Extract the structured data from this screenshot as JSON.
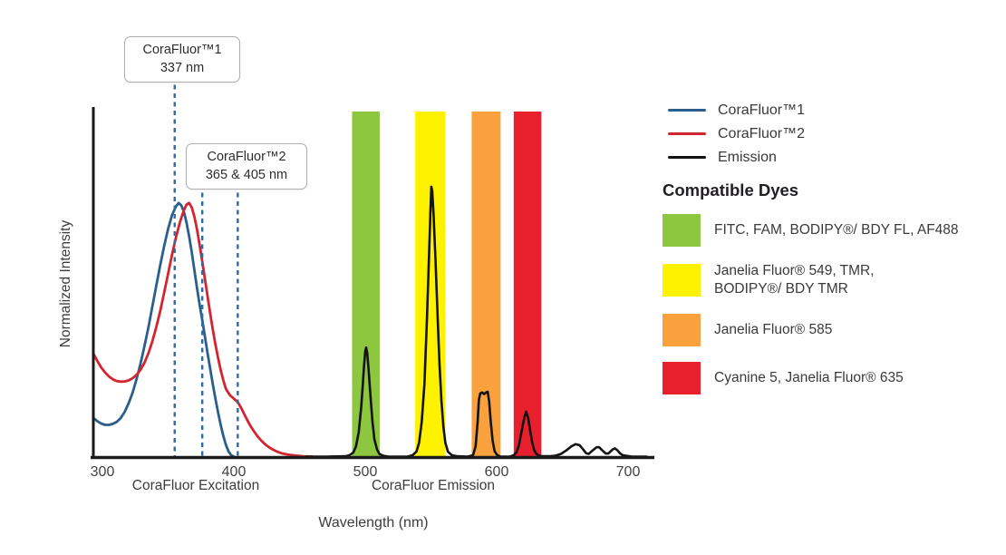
{
  "chart_data": {
    "type": "line",
    "title": "",
    "xlabel": "Wavelength (nm)",
    "ylabel": "Normalized Intensity",
    "x_ticks": [
      300,
      400,
      500,
      600,
      700
    ],
    "xlim": [
      292,
      718
    ],
    "ylim": [
      0,
      1
    ],
    "grid": false,
    "section_labels": [
      "CoraFluor Excitation",
      "CoraFluor Emission"
    ],
    "series": [
      {
        "name": "CoraFluor™1",
        "color": "#2a5f8d",
        "points": [
          [
            293,
            0.113
          ],
          [
            296,
            0.103
          ],
          [
            299,
            0.096
          ],
          [
            302,
            0.092
          ],
          [
            305,
            0.092
          ],
          [
            308,
            0.095
          ],
          [
            311,
            0.101
          ],
          [
            314,
            0.112
          ],
          [
            317,
            0.13
          ],
          [
            320,
            0.155
          ],
          [
            323,
            0.185
          ],
          [
            326,
            0.225
          ],
          [
            329,
            0.27
          ],
          [
            332,
            0.32
          ],
          [
            335,
            0.375
          ],
          [
            338,
            0.435
          ],
          [
            341,
            0.495
          ],
          [
            344,
            0.555
          ],
          [
            347,
            0.61
          ],
          [
            350,
            0.66
          ],
          [
            353,
            0.7
          ],
          [
            356,
            0.725
          ],
          [
            358,
            0.735
          ],
          [
            360,
            0.728
          ],
          [
            362,
            0.71
          ],
          [
            364,
            0.678
          ],
          [
            366,
            0.638
          ],
          [
            368,
            0.592
          ],
          [
            370,
            0.54
          ],
          [
            372,
            0.488
          ],
          [
            374,
            0.44
          ],
          [
            376,
            0.395
          ],
          [
            378,
            0.348
          ],
          [
            380,
            0.3
          ],
          [
            382,
            0.255
          ],
          [
            384,
            0.21
          ],
          [
            386,
            0.168
          ],
          [
            388,
            0.128
          ],
          [
            390,
            0.092
          ],
          [
            392,
            0.06
          ],
          [
            394,
            0.034
          ],
          [
            396,
            0.015
          ],
          [
            398,
            0.004
          ],
          [
            400,
            0.0
          ]
        ]
      },
      {
        "name": "CoraFluor™2",
        "color": "#d4242f",
        "points": [
          [
            293,
            0.3
          ],
          [
            296,
            0.278
          ],
          [
            299,
            0.259
          ],
          [
            302,
            0.244
          ],
          [
            305,
            0.232
          ],
          [
            308,
            0.224
          ],
          [
            311,
            0.219
          ],
          [
            314,
            0.217
          ],
          [
            317,
            0.218
          ],
          [
            320,
            0.221
          ],
          [
            323,
            0.227
          ],
          [
            326,
            0.237
          ],
          [
            329,
            0.252
          ],
          [
            332,
            0.272
          ],
          [
            335,
            0.3
          ],
          [
            338,
            0.334
          ],
          [
            341,
            0.375
          ],
          [
            344,
            0.422
          ],
          [
            347,
            0.475
          ],
          [
            350,
            0.53
          ],
          [
            353,
            0.585
          ],
          [
            356,
            0.636
          ],
          [
            359,
            0.68
          ],
          [
            362,
            0.714
          ],
          [
            364,
            0.73
          ],
          [
            366,
            0.735
          ],
          [
            368,
            0.722
          ],
          [
            370,
            0.695
          ],
          [
            372,
            0.658
          ],
          [
            374,
            0.613
          ],
          [
            376,
            0.565
          ],
          [
            378,
            0.515
          ],
          [
            380,
            0.465
          ],
          [
            382,
            0.415
          ],
          [
            384,
            0.368
          ],
          [
            386,
            0.325
          ],
          [
            388,
            0.286
          ],
          [
            390,
            0.251
          ],
          [
            392,
            0.221
          ],
          [
            394,
            0.196
          ],
          [
            397,
            0.178
          ],
          [
            400,
            0.168
          ],
          [
            403,
            0.158
          ],
          [
            406,
            0.138
          ],
          [
            409,
            0.115
          ],
          [
            412,
            0.093
          ],
          [
            415,
            0.075
          ],
          [
            418,
            0.059
          ],
          [
            421,
            0.046
          ],
          [
            424,
            0.035
          ],
          [
            428,
            0.024
          ],
          [
            432,
            0.016
          ],
          [
            436,
            0.01
          ],
          [
            441,
            0.006
          ],
          [
            447,
            0.003
          ],
          [
            453,
            0.001
          ],
          [
            460,
            0.0
          ]
        ]
      },
      {
        "name": "Emission",
        "color": "#131313",
        "points": [
          [
            455,
            0
          ],
          [
            470,
            0
          ],
          [
            485,
            0.001
          ],
          [
            488,
            0.004
          ],
          [
            491,
            0.012
          ],
          [
            493,
            0.03
          ],
          [
            495,
            0.07
          ],
          [
            497,
            0.145
          ],
          [
            498,
            0.2
          ],
          [
            499,
            0.26
          ],
          [
            500,
            0.305
          ],
          [
            500.7,
            0.316
          ],
          [
            501.5,
            0.3
          ],
          [
            502.5,
            0.255
          ],
          [
            504,
            0.175
          ],
          [
            505.5,
            0.1
          ],
          [
            507,
            0.05
          ],
          [
            509,
            0.02
          ],
          [
            511,
            0.007
          ],
          [
            514,
            0.002
          ],
          [
            518,
            0
          ],
          [
            532,
            0
          ],
          [
            536,
            0.004
          ],
          [
            539,
            0.015
          ],
          [
            541,
            0.04
          ],
          [
            543,
            0.1
          ],
          [
            545,
            0.21
          ],
          [
            547,
            0.4
          ],
          [
            548.5,
            0.575
          ],
          [
            549.5,
            0.7
          ],
          [
            550.3,
            0.782
          ],
          [
            551,
            0.77
          ],
          [
            552,
            0.7
          ],
          [
            553.5,
            0.565
          ],
          [
            555,
            0.41
          ],
          [
            556.5,
            0.27
          ],
          [
            558,
            0.16
          ],
          [
            559.5,
            0.085
          ],
          [
            561,
            0.04
          ],
          [
            563,
            0.014
          ],
          [
            566,
            0.004
          ],
          [
            570,
            0.001
          ],
          [
            578,
            0
          ],
          [
            582,
            0.004
          ],
          [
            584,
            0.03
          ],
          [
            585.5,
            0.1
          ],
          [
            586.5,
            0.165
          ],
          [
            587.5,
            0.183
          ],
          [
            589,
            0.186
          ],
          [
            590.5,
            0.181
          ],
          [
            592,
            0.186
          ],
          [
            593.2,
            0.188
          ],
          [
            594.3,
            0.16
          ],
          [
            595.5,
            0.1
          ],
          [
            597,
            0.045
          ],
          [
            598.5,
            0.015
          ],
          [
            600.5,
            0.004
          ],
          [
            603,
            0
          ],
          [
            610,
            0
          ],
          [
            613,
            0.004
          ],
          [
            615,
            0.012
          ],
          [
            617,
            0.033
          ],
          [
            619,
            0.073
          ],
          [
            621,
            0.113
          ],
          [
            622.5,
            0.13
          ],
          [
            624,
            0.112
          ],
          [
            625.5,
            0.075
          ],
          [
            627,
            0.042
          ],
          [
            628.5,
            0.02
          ],
          [
            630,
            0.009
          ],
          [
            632,
            0.003
          ],
          [
            635,
            0.001
          ],
          [
            641,
            0.001
          ],
          [
            645,
            0.003
          ],
          [
            649,
            0.008
          ],
          [
            653,
            0.018
          ],
          [
            657,
            0.03
          ],
          [
            660,
            0.036
          ],
          [
            663,
            0.033
          ],
          [
            666,
            0.02
          ],
          [
            668,
            0.01
          ],
          [
            670,
            0.008
          ],
          [
            673,
            0.018
          ],
          [
            676,
            0.027
          ],
          [
            678,
            0.027
          ],
          [
            681,
            0.016
          ],
          [
            683,
            0.009
          ],
          [
            685,
            0.009
          ],
          [
            688,
            0.02
          ],
          [
            690,
            0.024
          ],
          [
            692,
            0.018
          ],
          [
            694,
            0.009
          ],
          [
            696,
            0.004
          ],
          [
            699,
            0.002
          ],
          [
            703,
            0
          ],
          [
            714,
            0
          ]
        ]
      }
    ],
    "bands": [
      {
        "color": "#8dc63f",
        "nm": [
          490,
          511
        ]
      },
      {
        "color": "#fff200",
        "nm": [
          538,
          561
        ]
      },
      {
        "color": "#f9a13c",
        "nm": [
          581,
          603
        ]
      },
      {
        "color": "#e8202e",
        "nm": [
          613,
          634
        ]
      }
    ],
    "markers": [
      {
        "nm": 355,
        "annotation": 0
      },
      {
        "nm": 376,
        "annotation": 1
      },
      {
        "nm": 403,
        "annotation": 1
      }
    ],
    "marker_color": "#2e6da3",
    "annotations": [
      {
        "lines": [
          "CoraFluor™1",
          "337 nm"
        ]
      },
      {
        "lines": [
          "CoraFluor™2",
          "365 & 405 nm"
        ]
      }
    ]
  },
  "legend": {
    "items": [
      {
        "label": "CoraFluor™1",
        "color": "#2a5f8d"
      },
      {
        "label": "CoraFluor™2",
        "color": "#d4242f"
      },
      {
        "label": "Emission",
        "color": "#131313"
      }
    ],
    "dyes_heading": "Compatible Dyes",
    "dyes": [
      {
        "color": "#8dc63f",
        "label_lines": [
          "FITC, FAM, BODIPY®/ BDY FL, AF488"
        ]
      },
      {
        "color": "#fff200",
        "label_lines": [
          "Janelia Fluor® 549, TMR,",
          "BODIPY®/ BDY TMR"
        ]
      },
      {
        "color": "#f9a13c",
        "label_lines": [
          "Janelia Fluor® 585"
        ]
      },
      {
        "color": "#e8202e",
        "label_lines": [
          "Cyanine 5, Janelia Fluor® 635"
        ]
      }
    ]
  },
  "axis": {
    "color": "#1a1a1a",
    "tick_color": "#414042"
  }
}
